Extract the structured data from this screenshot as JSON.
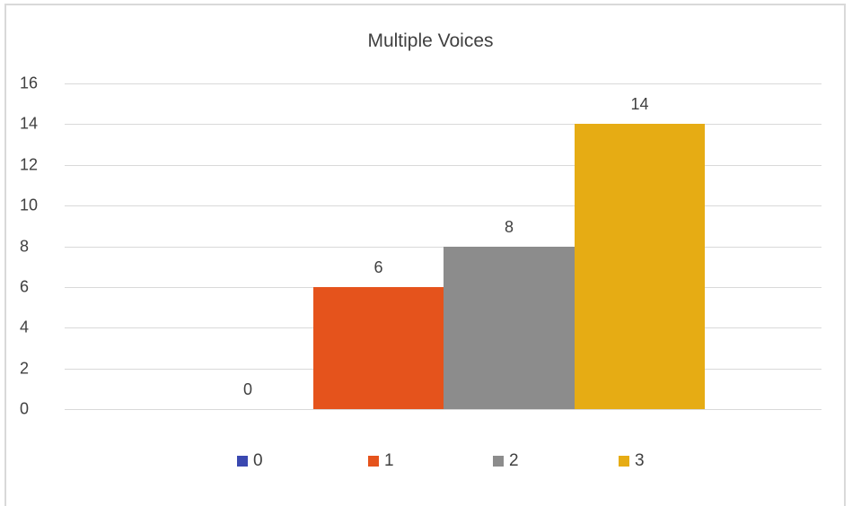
{
  "chart_data": {
    "type": "bar",
    "title": "Multiple Voices",
    "categories": [
      "0",
      "1",
      "2",
      "3"
    ],
    "values": [
      0,
      6,
      8,
      14
    ],
    "series": [
      {
        "name": "0",
        "values": [
          0
        ],
        "color": "#3a48b0"
      },
      {
        "name": "1",
        "values": [
          6
        ],
        "color": "#e5531c"
      },
      {
        "name": "2",
        "values": [
          8
        ],
        "color": "#8c8c8c"
      },
      {
        "name": "3",
        "values": [
          14
        ],
        "color": "#e6ac14"
      }
    ],
    "data_labels": [
      "0",
      "6",
      "8",
      "14"
    ],
    "xlabel": "",
    "ylabel": "",
    "ylim": [
      0,
      16
    ],
    "yticks": [
      "0",
      "2",
      "4",
      "6",
      "8",
      "10",
      "12",
      "14",
      "16"
    ],
    "grid": true,
    "legend_position": "bottom",
    "legend": [
      "0",
      "1",
      "2",
      "3"
    ]
  }
}
